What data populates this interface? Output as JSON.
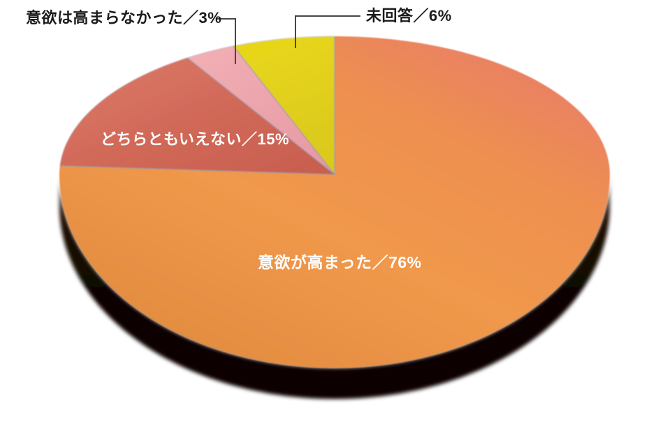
{
  "chart_data": {
    "type": "pie",
    "style": "3d-perspective",
    "direction": "clockwise",
    "start": "12-oclock",
    "background": "#ffffff",
    "slices": [
      {
        "label": "意欲が高まった",
        "value": 76,
        "display": "意欲が高まった／76%",
        "color": "#ee9348",
        "label_style": "inside-white"
      },
      {
        "label": "どちらともいえない",
        "value": 15,
        "display": "どちらともいえない／15%",
        "color": "#cf6555",
        "label_style": "inside-white"
      },
      {
        "label": "意欲は高まらなかった",
        "value": 3,
        "display": "意欲は高まらなかった／3%",
        "color": "#efa5ad",
        "label_style": "callout-black"
      },
      {
        "label": "未回答",
        "value": 6,
        "display": "未回答／6%",
        "color": "#e2d21c",
        "label_style": "callout-black"
      }
    ],
    "callout_line_color": "#474747",
    "boundary_line_color": "#8e99a4",
    "rim_highlight_color": "#bfc0c7",
    "side_color": "#140a04",
    "text_color_inside": "#ffffff",
    "text_color_callout": "#1b1b1b"
  }
}
